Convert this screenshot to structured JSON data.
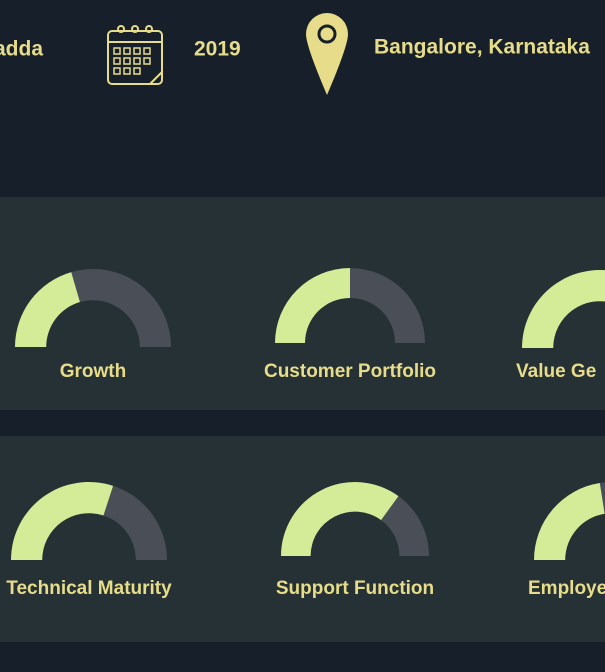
{
  "header": {
    "items": [
      "adda",
      "2019",
      "Bangalore, Karnataka"
    ]
  },
  "gauge_range": [
    0,
    100
  ],
  "panels": [
    {
      "gauges": [
        {
          "label": "Growth",
          "value": 41
        },
        {
          "label": "Customer Portfolio",
          "value": 50
        },
        {
          "label": "Value Ge",
          "value": 60
        }
      ]
    },
    {
      "gauges": [
        {
          "label": "Technical Maturity",
          "value": 60
        },
        {
          "label": "Support Function",
          "value": 70
        },
        {
          "label": "Employe",
          "value": 45
        }
      ]
    }
  ]
}
